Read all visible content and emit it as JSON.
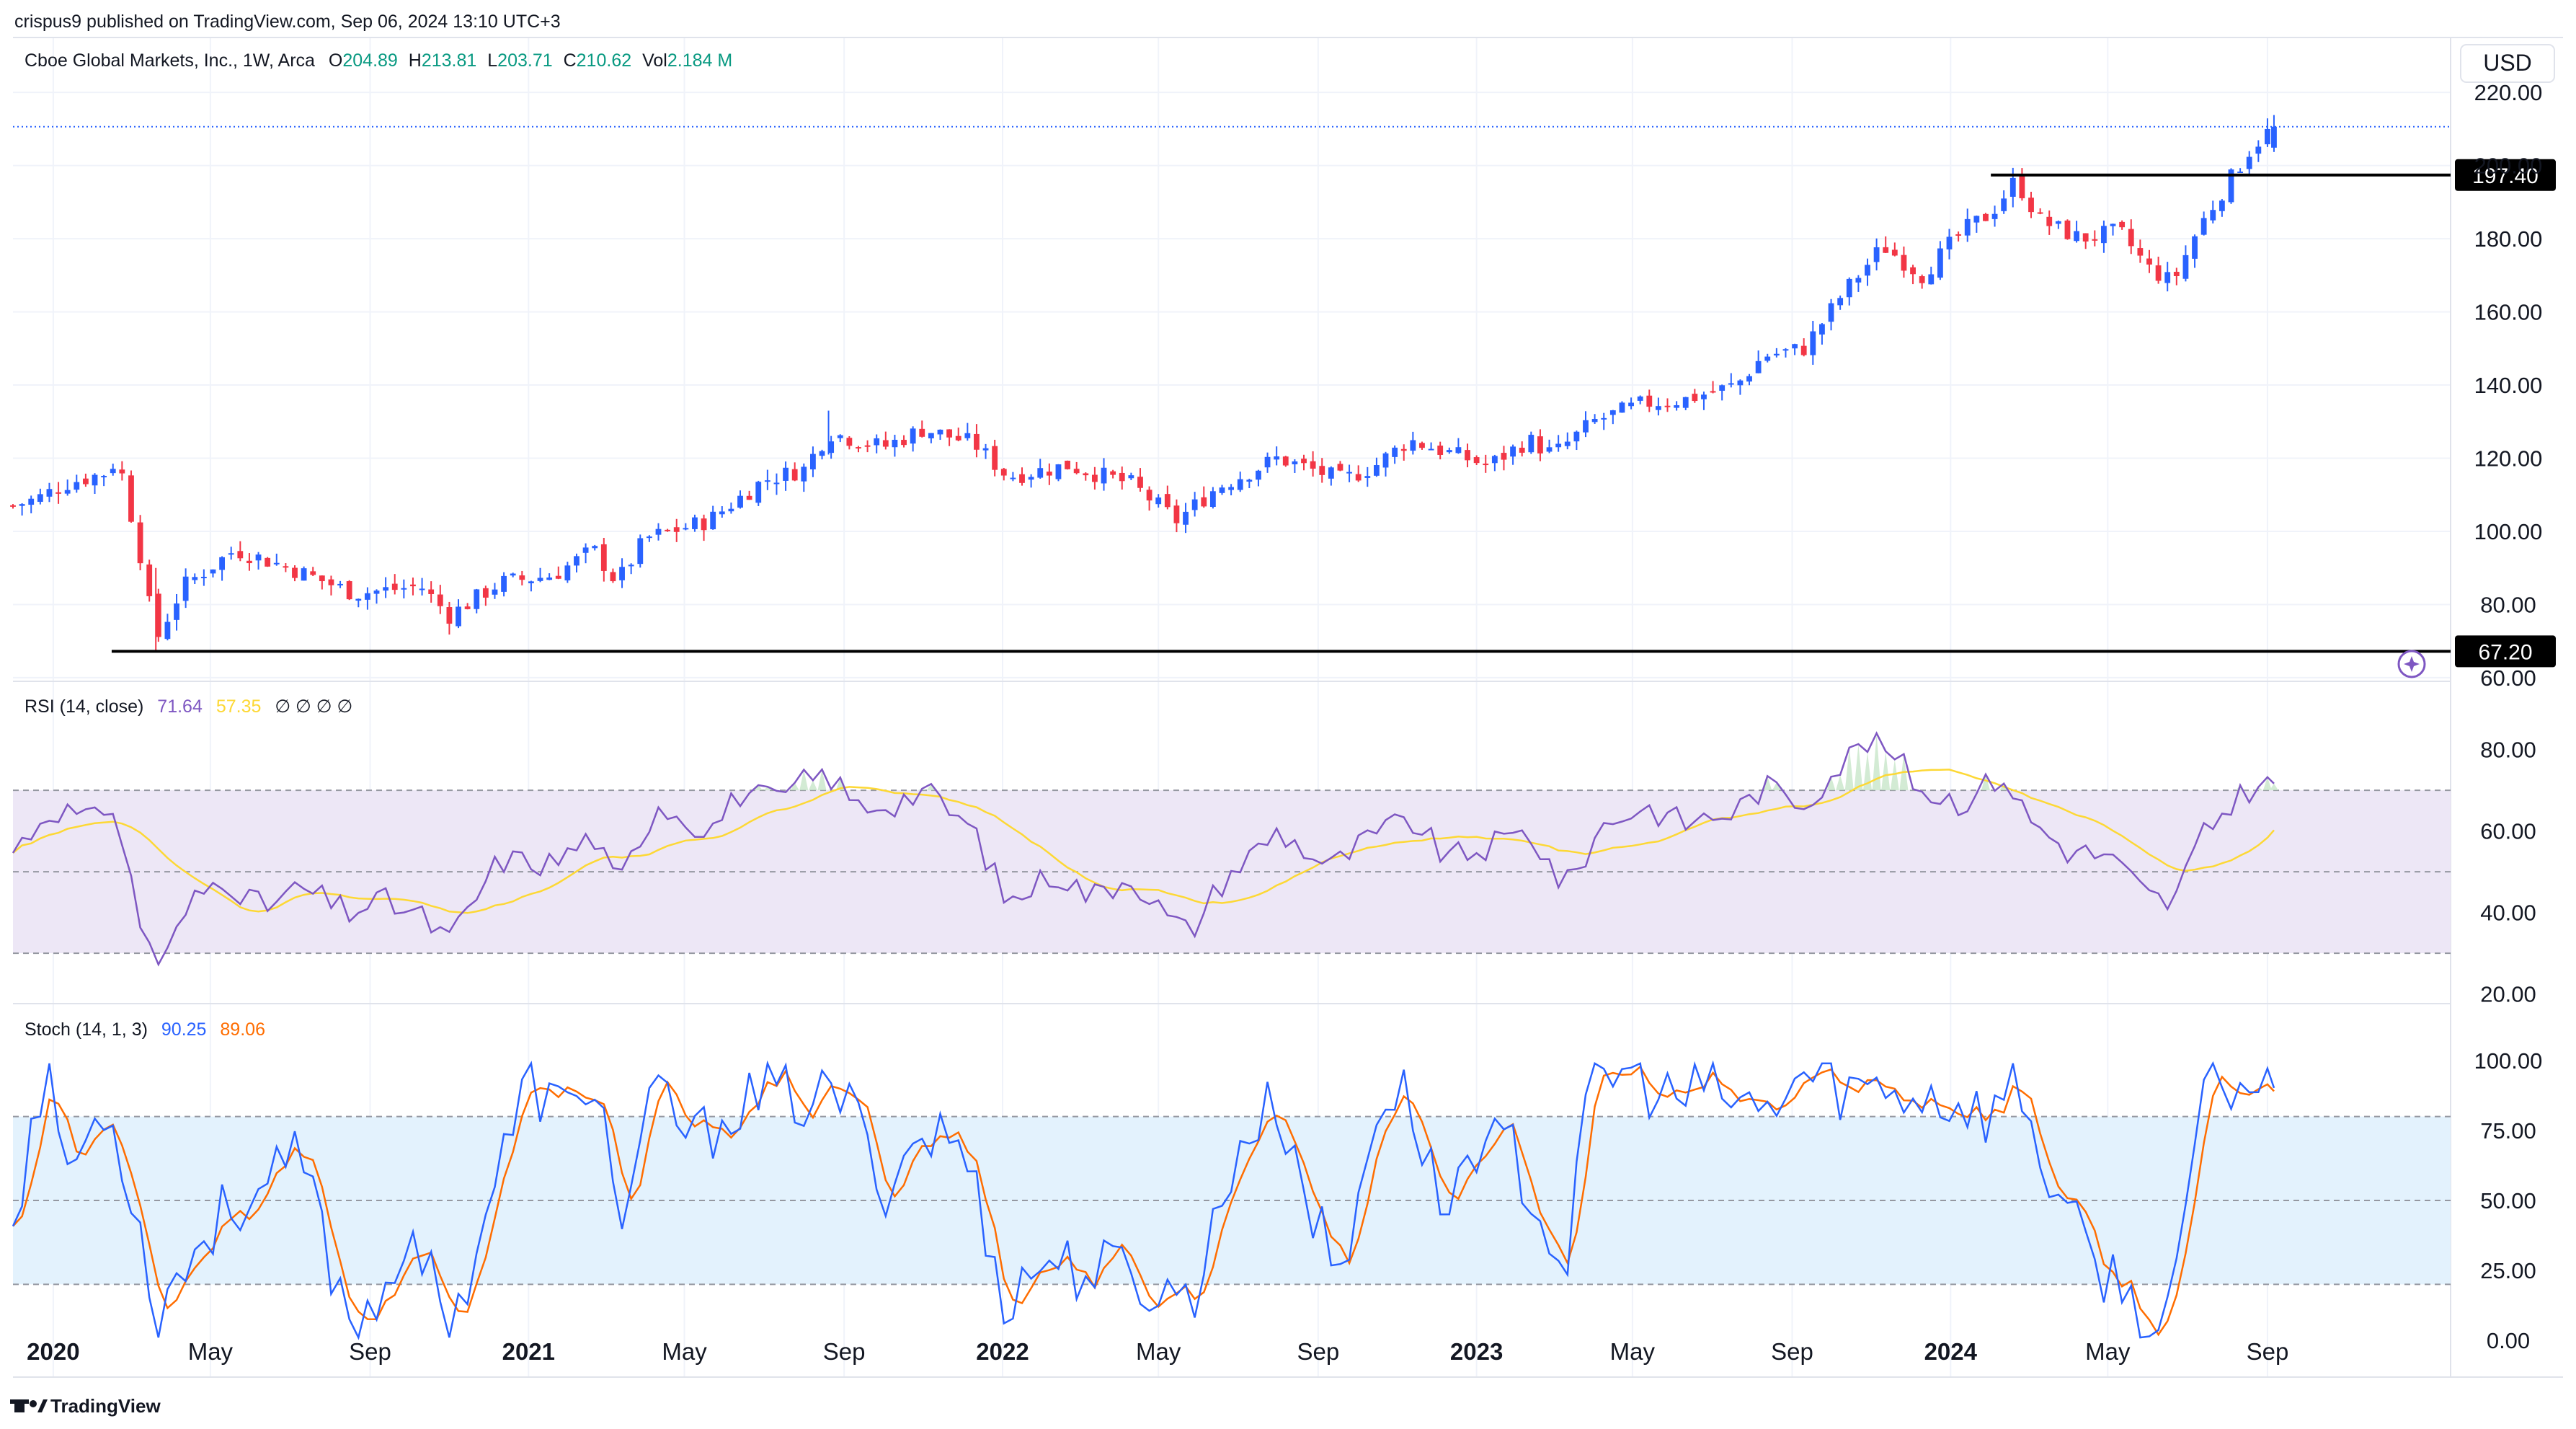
{
  "header": {
    "published": "crispus9 published on TradingView.com, Sep 06, 2024 13:10 UTC+3"
  },
  "footer": {
    "brand": "TradingView"
  },
  "colors": {
    "up": "#2962ff",
    "down": "#f23645",
    "rsi_line": "#7e57c2",
    "rsi_ma": "#fdd835",
    "rsi_band": "#ede7f6",
    "stoch_k": "#2962ff",
    "stoch_d": "#ff6d00",
    "stoch_band": "#e3f2fd",
    "grid": "#f0f3fa",
    "value_green": "#089981"
  },
  "chart_data": [
    {
      "type": "candlestick",
      "title": "Cboe Global Markets, Inc., 1W, Arca",
      "currency": "USD",
      "ohlcv": {
        "open_label": "O",
        "open": "204.89",
        "high_label": "H",
        "high": "213.81",
        "low_label": "L",
        "low": "203.71",
        "close_label": "C",
        "close": "210.62",
        "volume_label": "Vol",
        "volume": "2.184 M"
      },
      "y_ticks": [
        "220.00",
        "200.00",
        "180.00",
        "160.00",
        "140.00",
        "120.00",
        "100.00",
        "80.00",
        "60.00"
      ],
      "ylim": [
        59,
        222
      ],
      "horizontal_lines": [
        {
          "label": "197.40",
          "value": 197.4,
          "from": "2024-02-01"
        },
        {
          "label": "67.20",
          "value": 67.2,
          "from": "2020-02-15"
        }
      ],
      "last_price": 210.62,
      "anchor_points": [
        [
          "2019-12-01",
          107
        ],
        [
          "2019-12-20",
          109
        ],
        [
          "2020-01-10",
          113
        ],
        [
          "2020-02-10",
          116
        ],
        [
          "2020-02-20",
          120
        ],
        [
          "2020-03-09",
          92
        ],
        [
          "2020-03-20",
          70
        ],
        [
          "2020-04-10",
          85
        ],
        [
          "2020-05-20",
          95
        ],
        [
          "2020-07-01",
          90
        ],
        [
          "2020-08-20",
          83
        ],
        [
          "2020-10-10",
          85
        ],
        [
          "2020-11-01",
          77
        ],
        [
          "2020-12-10",
          86
        ],
        [
          "2021-01-20",
          88
        ],
        [
          "2021-02-20",
          95
        ],
        [
          "2021-03-10",
          86
        ],
        [
          "2021-04-01",
          98
        ],
        [
          "2021-05-20",
          103
        ],
        [
          "2021-07-01",
          114
        ],
        [
          "2021-08-01",
          117
        ],
        [
          "2021-08-20",
          127
        ],
        [
          "2021-10-01",
          123
        ],
        [
          "2021-11-01",
          128
        ],
        [
          "2021-12-10",
          124
        ],
        [
          "2022-01-05",
          115
        ],
        [
          "2022-02-20",
          118
        ],
        [
          "2022-04-10",
          113
        ],
        [
          "2022-05-15",
          103
        ],
        [
          "2022-06-15",
          112
        ],
        [
          "2022-08-01",
          120
        ],
        [
          "2022-09-20",
          114
        ],
        [
          "2022-10-15",
          118
        ],
        [
          "2022-11-10",
          125
        ],
        [
          "2022-12-15",
          121
        ],
        [
          "2023-01-10",
          118
        ],
        [
          "2023-02-10",
          125
        ],
        [
          "2023-03-01",
          121
        ],
        [
          "2023-04-01",
          130
        ],
        [
          "2023-05-10",
          135
        ],
        [
          "2023-06-10",
          136
        ],
        [
          "2023-07-20",
          140
        ],
        [
          "2023-08-10",
          148
        ],
        [
          "2023-09-10",
          150
        ],
        [
          "2023-10-10",
          165
        ],
        [
          "2023-11-10",
          178
        ],
        [
          "2023-12-10",
          170
        ],
        [
          "2024-01-10",
          182
        ],
        [
          "2024-02-01",
          187
        ],
        [
          "2024-02-20",
          196
        ],
        [
          "2024-03-10",
          185
        ],
        [
          "2024-04-10",
          180
        ],
        [
          "2024-05-10",
          182
        ],
        [
          "2024-06-01",
          172
        ],
        [
          "2024-06-20",
          168
        ],
        [
          "2024-07-10",
          183
        ],
        [
          "2024-08-01",
          195
        ],
        [
          "2024-08-20",
          205
        ],
        [
          "2024-09-06",
          210.62
        ]
      ],
      "x_ticks": [
        {
          "label": "2020",
          "date": "2020-01-01",
          "bold": true
        },
        {
          "label": "May",
          "date": "2020-05-01",
          "bold": false
        },
        {
          "label": "Sep",
          "date": "2020-09-01",
          "bold": false
        },
        {
          "label": "2021",
          "date": "2021-01-01",
          "bold": true
        },
        {
          "label": "May",
          "date": "2021-05-01",
          "bold": false
        },
        {
          "label": "Sep",
          "date": "2021-09-01",
          "bold": false
        },
        {
          "label": "2022",
          "date": "2022-01-01",
          "bold": true
        },
        {
          "label": "May",
          "date": "2022-05-01",
          "bold": false
        },
        {
          "label": "Sep",
          "date": "2022-09-01",
          "bold": false
        },
        {
          "label": "2023",
          "date": "2023-01-01",
          "bold": true
        },
        {
          "label": "May",
          "date": "2023-05-01",
          "bold": false
        },
        {
          "label": "Sep",
          "date": "2023-09-01",
          "bold": false
        },
        {
          "label": "2024",
          "date": "2024-01-01",
          "bold": true
        },
        {
          "label": "May",
          "date": "2024-05-01",
          "bold": false
        },
        {
          "label": "Sep",
          "date": "2024-09-01",
          "bold": false
        }
      ],
      "x_range": [
        "2019-12-01",
        "2025-01-20"
      ]
    },
    {
      "type": "line",
      "title": "RSI (14, close)",
      "value": "71.64",
      "ma_value": "57.35",
      "extra_values": "∅ ∅ ∅ ∅",
      "y_ticks": [
        "80.00",
        "60.00",
        "40.00",
        "20.00"
      ],
      "ylim": [
        18,
        87
      ],
      "band": [
        30,
        70
      ],
      "midline": 50,
      "rsi_anchors": [
        [
          "2019-12-01",
          55
        ],
        [
          "2020-01-01",
          66
        ],
        [
          "2020-02-01",
          62
        ],
        [
          "2020-02-15",
          68
        ],
        [
          "2020-03-10",
          35
        ],
        [
          "2020-03-25",
          27
        ],
        [
          "2020-04-15",
          42
        ],
        [
          "2020-05-10",
          49
        ],
        [
          "2020-06-10",
          41
        ],
        [
          "2020-07-10",
          46
        ],
        [
          "2020-08-15",
          40
        ],
        [
          "2020-09-10",
          43
        ],
        [
          "2020-10-10",
          39
        ],
        [
          "2020-11-01",
          33
        ],
        [
          "2020-12-10",
          53
        ],
        [
          "2021-01-20",
          52
        ],
        [
          "2021-02-20",
          59
        ],
        [
          "2021-03-10",
          46
        ],
        [
          "2021-04-10",
          67
        ],
        [
          "2021-05-20",
          60
        ],
        [
          "2021-06-15",
          70
        ],
        [
          "2021-07-10",
          67
        ],
        [
          "2021-08-01",
          72
        ],
        [
          "2021-08-20",
          74
        ],
        [
          "2021-09-10",
          66
        ],
        [
          "2021-10-10",
          67
        ],
        [
          "2021-11-01",
          70
        ],
        [
          "2021-12-10",
          60
        ],
        [
          "2022-01-05",
          42
        ],
        [
          "2022-02-10",
          50
        ],
        [
          "2022-03-10",
          44
        ],
        [
          "2022-04-10",
          49
        ],
        [
          "2022-05-10",
          38
        ],
        [
          "2022-05-25",
          35
        ],
        [
          "2022-06-20",
          48
        ],
        [
          "2022-08-01",
          60
        ],
        [
          "2022-09-10",
          51
        ],
        [
          "2022-10-10",
          58
        ],
        [
          "2022-11-10",
          63
        ],
        [
          "2022-12-10",
          53
        ],
        [
          "2023-01-10",
          56
        ],
        [
          "2023-02-10",
          60
        ],
        [
          "2023-03-10",
          46
        ],
        [
          "2023-04-10",
          62
        ],
        [
          "2023-05-10",
          66
        ],
        [
          "2023-06-10",
          62
        ],
        [
          "2023-07-20",
          65
        ],
        [
          "2023-08-10",
          71
        ],
        [
          "2023-09-10",
          67
        ],
        [
          "2023-10-10",
          77
        ],
        [
          "2023-11-01",
          83
        ],
        [
          "2023-11-20",
          78
        ],
        [
          "2023-12-10",
          70
        ],
        [
          "2024-01-10",
          67
        ],
        [
          "2024-02-10",
          74
        ],
        [
          "2024-03-01",
          63
        ],
        [
          "2024-04-01",
          55
        ],
        [
          "2024-05-01",
          54
        ],
        [
          "2024-06-01",
          44
        ],
        [
          "2024-06-20",
          42
        ],
        [
          "2024-07-10",
          57
        ],
        [
          "2024-08-01",
          66
        ],
        [
          "2024-08-20",
          71
        ],
        [
          "2024-09-06",
          71.64
        ]
      ]
    },
    {
      "type": "line",
      "title": "Stoch (14, 1, 3)",
      "k_value": "90.25",
      "d_value": "89.06",
      "y_ticks": [
        "100.00",
        "75.00",
        "50.00",
        "25.00",
        "0.00"
      ],
      "ylim": [
        -8,
        108
      ],
      "band": [
        20,
        80
      ],
      "midline": 50,
      "k_anchors": [
        [
          "2019-12-01",
          45
        ],
        [
          "2019-12-25",
          95
        ],
        [
          "2020-01-15",
          60
        ],
        [
          "2020-02-10",
          85
        ],
        [
          "2020-02-25",
          65
        ],
        [
          "2020-03-20",
          10
        ],
        [
          "2020-04-15",
          30
        ],
        [
          "2020-05-15",
          48
        ],
        [
          "2020-06-15",
          55
        ],
        [
          "2020-07-10",
          65
        ],
        [
          "2020-08-10",
          15
        ],
        [
          "2020-08-25",
          5
        ],
        [
          "2020-09-20",
          30
        ],
        [
          "2020-10-15",
          25
        ],
        [
          "2020-11-05",
          6
        ],
        [
          "2020-12-01",
          50
        ],
        [
          "2021-01-01",
          92
        ],
        [
          "2021-02-01",
          80
        ],
        [
          "2021-02-20",
          97
        ],
        [
          "2021-03-15",
          40
        ],
        [
          "2021-04-10",
          90
        ],
        [
          "2021-05-10",
          70
        ],
        [
          "2021-06-10",
          85
        ],
        [
          "2021-07-10",
          88
        ],
        [
          "2021-08-10",
          85
        ],
        [
          "2021-09-01",
          88
        ],
        [
          "2021-10-01",
          55
        ],
        [
          "2021-11-01",
          75
        ],
        [
          "2021-12-01",
          70
        ],
        [
          "2022-01-05",
          12
        ],
        [
          "2022-02-01",
          30
        ],
        [
          "2022-03-01",
          25
        ],
        [
          "2022-04-01",
          25
        ],
        [
          "2022-05-10",
          15
        ],
        [
          "2022-06-01",
          20
        ],
        [
          "2022-07-01",
          70
        ],
        [
          "2022-08-01",
          85
        ],
        [
          "2022-09-01",
          40
        ],
        [
          "2022-09-20",
          20
        ],
        [
          "2022-10-15",
          85
        ],
        [
          "2022-11-10",
          88
        ],
        [
          "2022-12-05",
          45
        ],
        [
          "2023-01-01",
          72
        ],
        [
          "2023-02-01",
          65
        ],
        [
          "2023-03-10",
          25
        ],
        [
          "2023-04-01",
          95
        ],
        [
          "2023-05-01",
          95
        ],
        [
          "2023-06-01",
          85
        ],
        [
          "2023-07-01",
          90
        ],
        [
          "2023-08-10",
          80
        ],
        [
          "2023-09-10",
          95
        ],
        [
          "2023-10-10",
          90
        ],
        [
          "2023-11-10",
          90
        ],
        [
          "2023-12-10",
          88
        ],
        [
          "2024-01-10",
          85
        ],
        [
          "2024-02-01",
          80
        ],
        [
          "2024-02-20",
          95
        ],
        [
          "2024-03-15",
          60
        ],
        [
          "2024-04-15",
          30
        ],
        [
          "2024-05-10",
          20
        ],
        [
          "2024-05-25",
          10
        ],
        [
          "2024-06-10",
          3
        ],
        [
          "2024-06-25",
          20
        ],
        [
          "2024-07-10",
          85
        ],
        [
          "2024-08-01",
          92
        ],
        [
          "2024-08-20",
          92
        ],
        [
          "2024-09-06",
          90.25
        ]
      ]
    }
  ]
}
